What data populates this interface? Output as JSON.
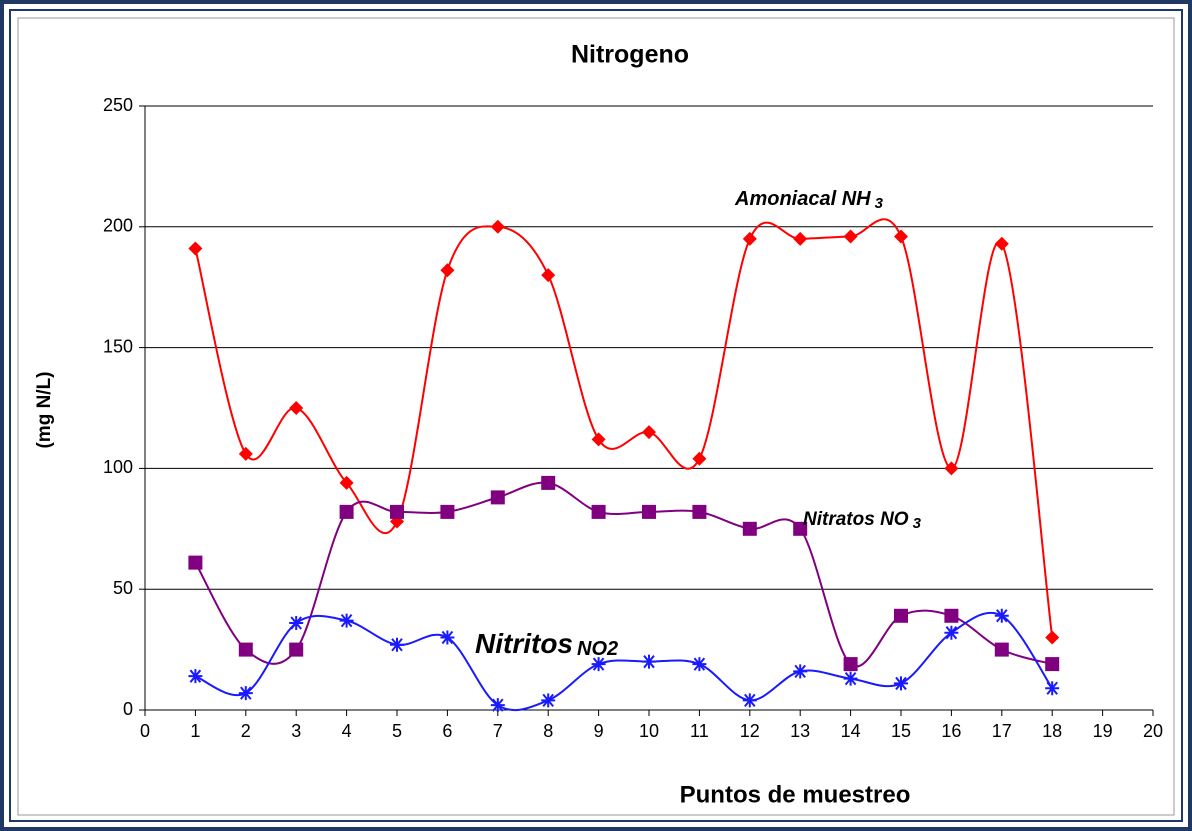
{
  "chart_data": {
    "type": "line",
    "title": "Nitrogeno",
    "x_label": "Puntos de muestreo",
    "y_label": "(mg N/L)",
    "x": [
      1,
      2,
      3,
      4,
      5,
      6,
      7,
      8,
      9,
      10,
      11,
      12,
      13,
      14,
      15,
      16,
      17,
      18
    ],
    "xlim": [
      0,
      20
    ],
    "xticks": [
      0,
      1,
      2,
      3,
      4,
      5,
      6,
      7,
      8,
      9,
      10,
      11,
      12,
      13,
      14,
      15,
      16,
      17,
      18,
      19,
      20
    ],
    "ylim": [
      0,
      250
    ],
    "yticks": [
      0,
      50,
      100,
      150,
      200,
      250
    ],
    "grid": true,
    "smooth": true,
    "series": [
      {
        "name": "Amoniacal NH",
        "name_sub": "3",
        "color": "#ff0000",
        "marker": "diamond",
        "values": [
          191,
          106,
          125,
          94,
          78,
          182,
          200,
          180,
          112,
          115,
          104,
          195,
          195,
          196,
          196,
          100,
          193,
          30
        ]
      },
      {
        "name": "Nitratos NO",
        "name_sub": "3",
        "color": "#800080",
        "marker": "square",
        "values": [
          61,
          25,
          25,
          82,
          82,
          82,
          88,
          94,
          82,
          82,
          82,
          75,
          75,
          19,
          39,
          39,
          25,
          19
        ]
      },
      {
        "name": "Nitritos",
        "name_sub": "NO2",
        "color": "#1a1aff",
        "marker": "asterisk",
        "values": [
          14,
          7,
          36,
          37,
          27,
          30,
          2,
          4,
          19,
          20,
          19,
          4,
          16,
          13,
          11,
          32,
          39,
          9
        ]
      }
    ]
  }
}
